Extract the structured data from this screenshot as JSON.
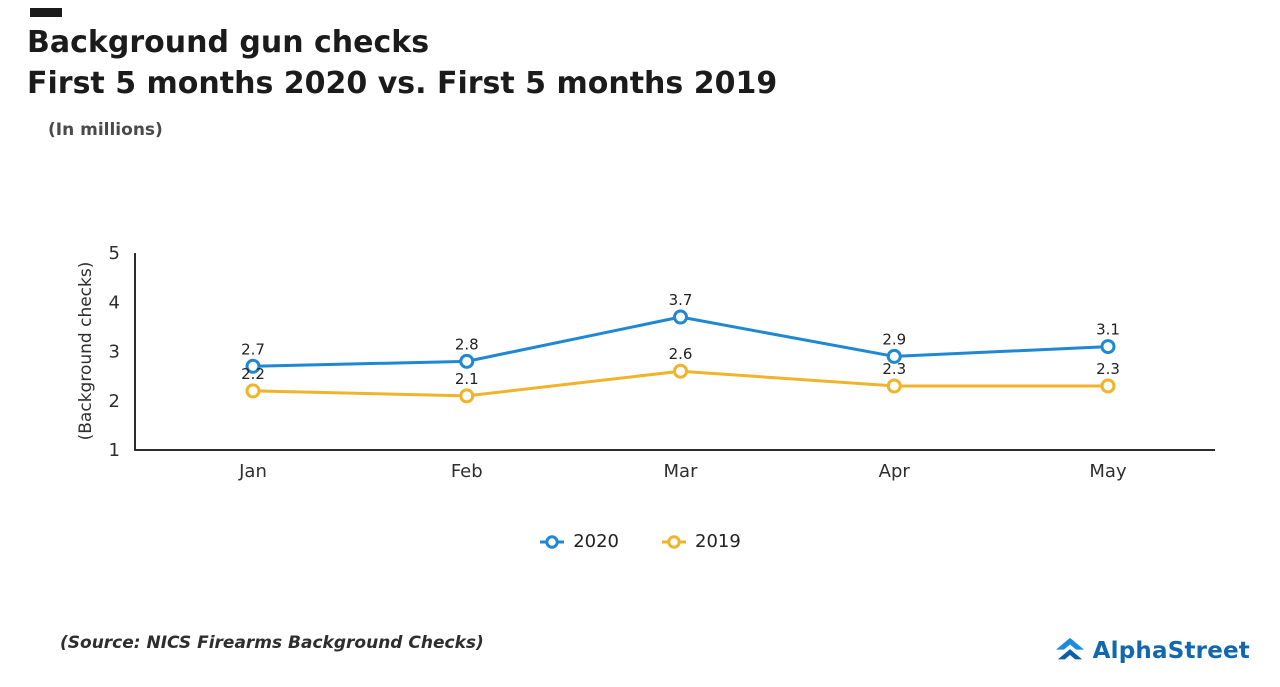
{
  "page": {
    "title_line1": "Background gun checks",
    "title_line2": "First 5 months 2020 vs. First 5 months 2019",
    "subtitle": "(In millions)",
    "source": "(Source: NICS Firearms Background Checks)",
    "brand": "AlphaStreet"
  },
  "chart_data": {
    "type": "line",
    "title": "Background gun checks — First 5 months 2020 vs. First 5 months 2019",
    "categories": [
      "Jan",
      "Feb",
      "Mar",
      "Apr",
      "May"
    ],
    "series": [
      {
        "name": "2020",
        "color": "#1e88d4",
        "values": [
          2.7,
          2.8,
          3.7,
          2.9,
          3.1
        ]
      },
      {
        "name": "2019",
        "color": "#f0b32a",
        "values": [
          2.2,
          2.1,
          2.6,
          2.3,
          2.3
        ]
      }
    ],
    "xlabel": "",
    "ylabel": "(Background checks)",
    "y_ticks": [
      1,
      2,
      3,
      4,
      5
    ],
    "ylim": [
      1,
      5
    ],
    "grid": false,
    "legend_position": "bottom"
  }
}
